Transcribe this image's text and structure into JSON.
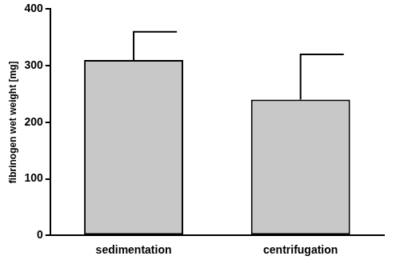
{
  "chart_data": {
    "type": "bar",
    "y_label": "fibrinogen wet weight [mg]",
    "categories": [
      "sedimentation",
      "centrifugation"
    ],
    "values": [
      310,
      240
    ],
    "errors": [
      50,
      80
    ],
    "color": "#c8c8c8",
    "ylim": [
      0,
      400
    ],
    "yticks": [
      0,
      100,
      200,
      300,
      400
    ],
    "grid": false
  }
}
